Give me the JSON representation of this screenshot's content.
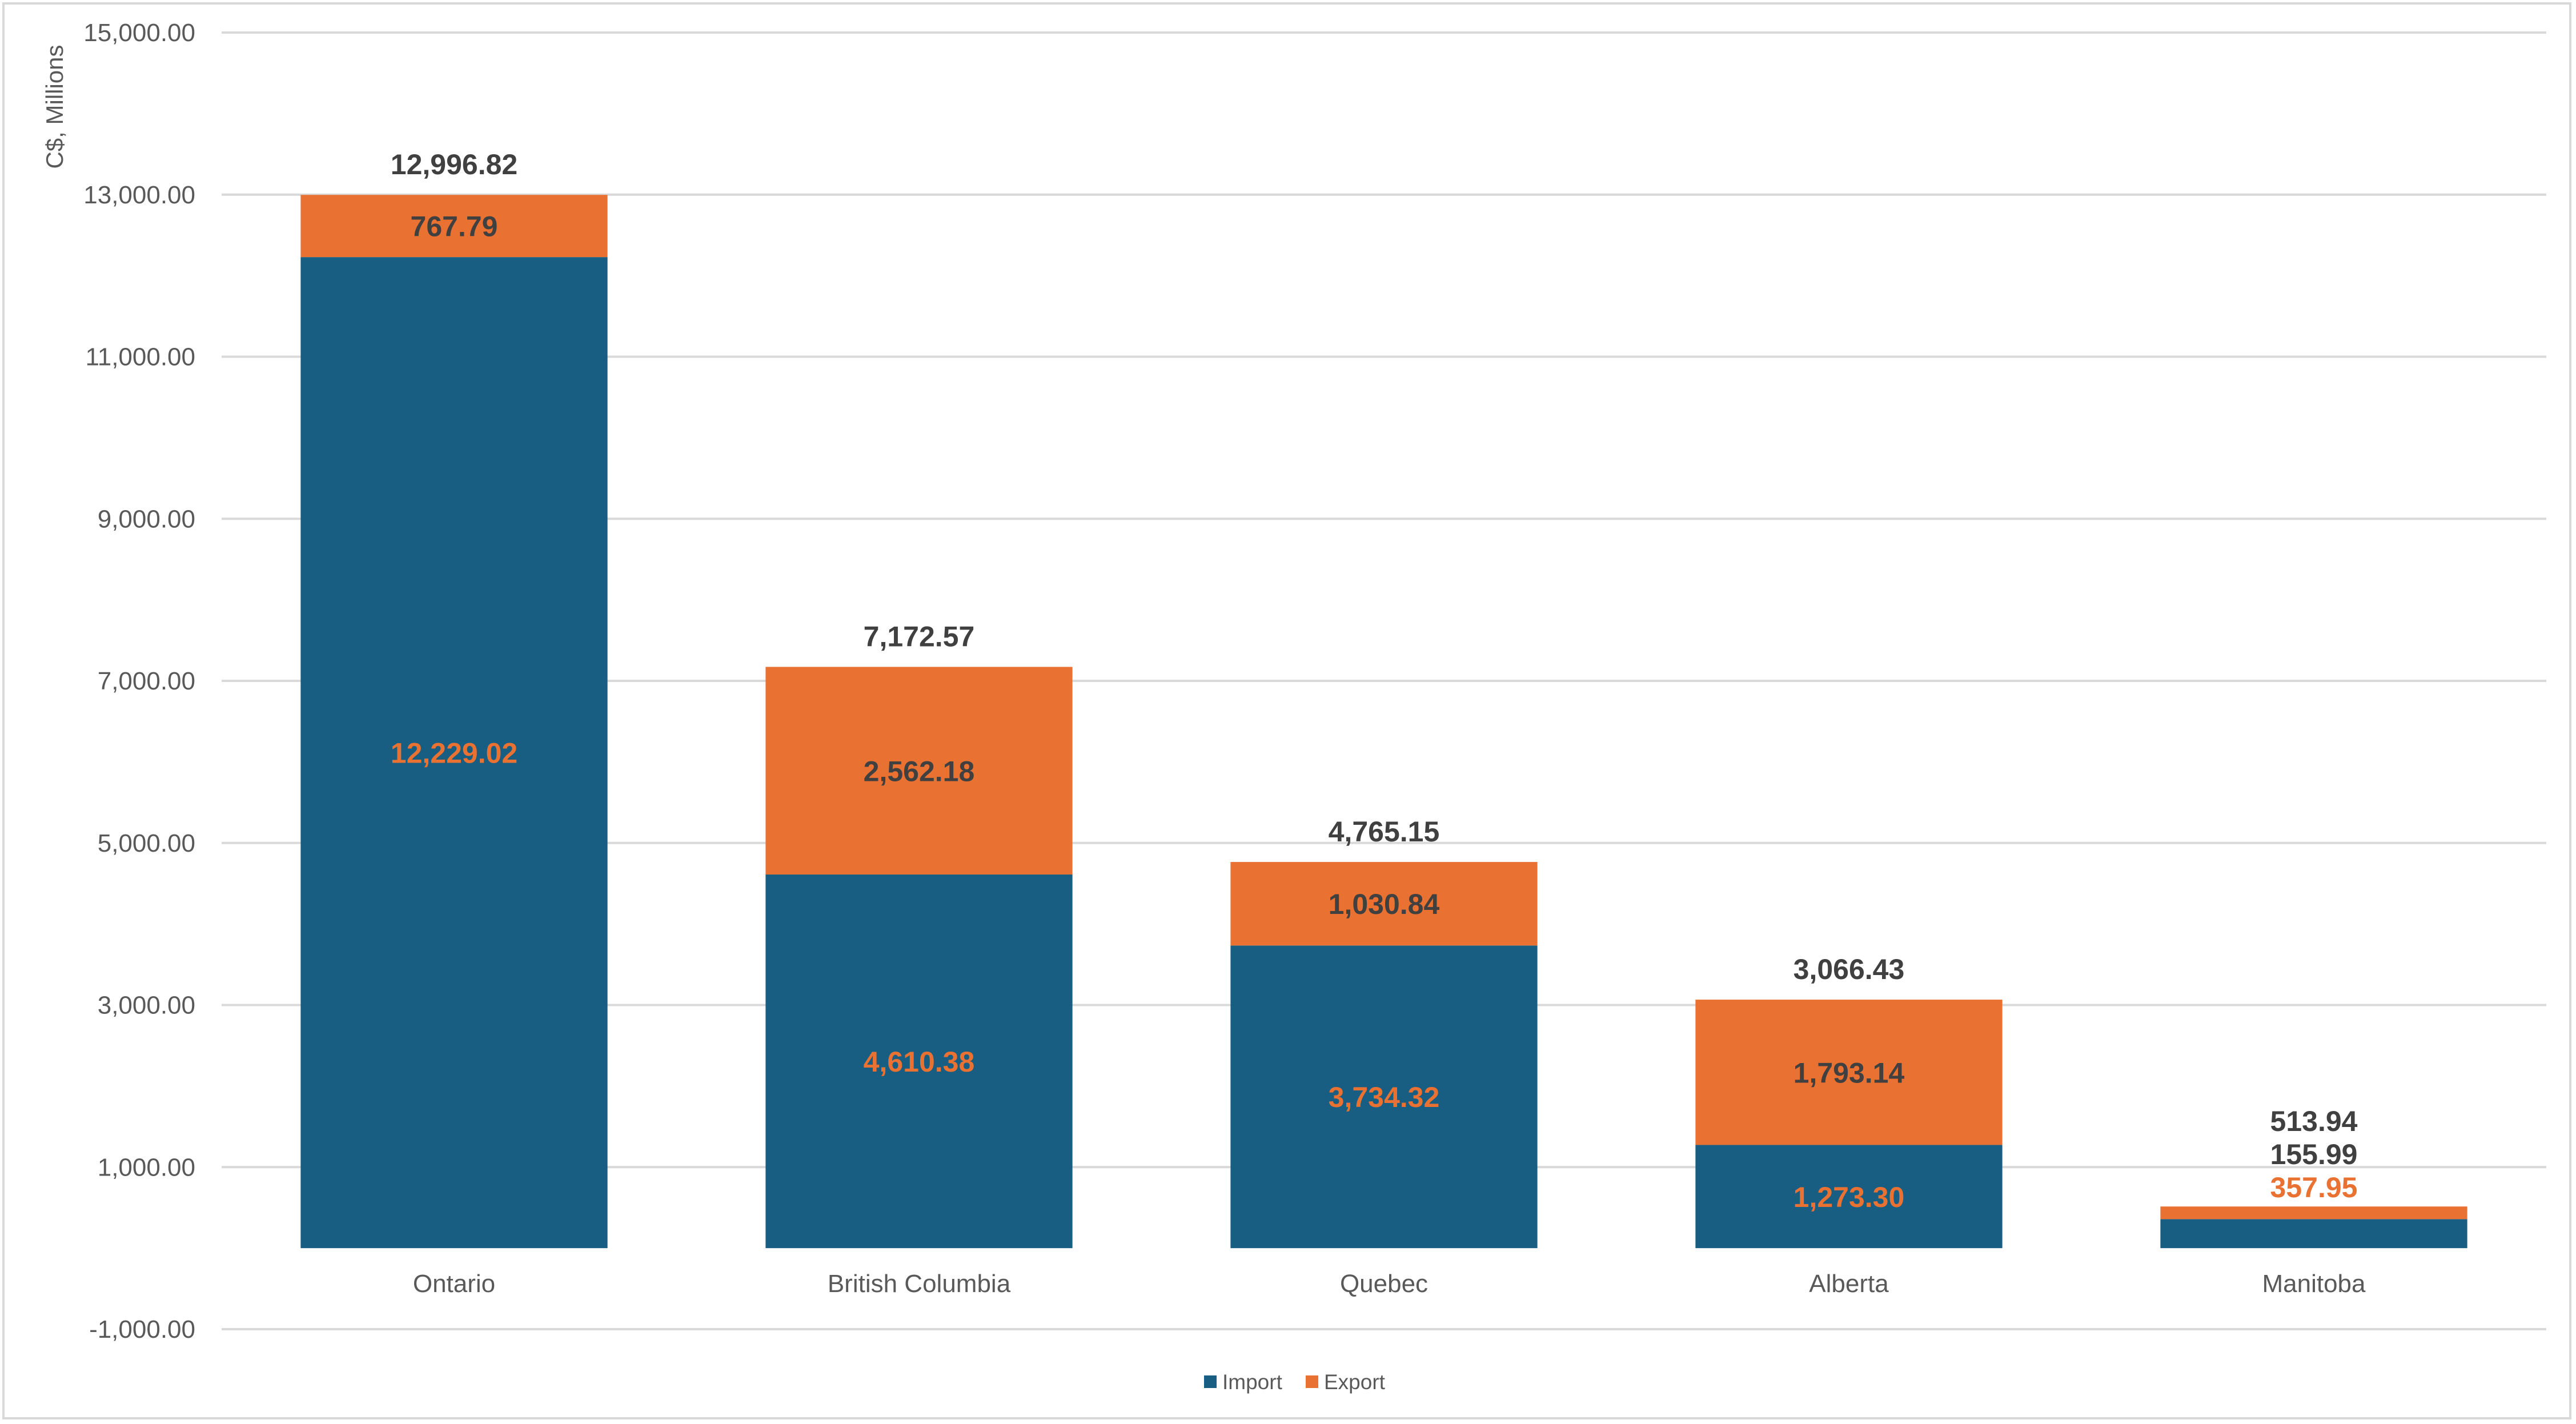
{
  "chart_data": {
    "type": "bar",
    "stacked": true,
    "title": "",
    "xlabel": "",
    "ylabel": "C$, Millions",
    "ylim": [
      -1000,
      15000
    ],
    "yticks": [
      -1000,
      1000,
      3000,
      5000,
      7000,
      9000,
      11000,
      13000,
      15000
    ],
    "ytick_labels": [
      "-1,000.00",
      "1,000.00",
      "3,000.00",
      "5,000.00",
      "7,000.00",
      "9,000.00",
      "11,000.00",
      "13,000.00",
      "15,000.00"
    ],
    "grid": true,
    "legend_position": "bottom",
    "categories": [
      "Ontario",
      "British Columbia",
      "Quebec",
      "Alberta",
      "Manitoba"
    ],
    "series": [
      {
        "name": "Import",
        "color": "#175E82",
        "label_color": "#E97132",
        "values": [
          12229.02,
          4610.38,
          3734.32,
          1273.3,
          357.95
        ],
        "labels": [
          "12,229.02",
          "4,610.38",
          "3,734.32",
          "1,273.30",
          "357.95"
        ]
      },
      {
        "name": "Export",
        "color": "#E97132",
        "label_color": "#404040",
        "values": [
          767.79,
          2562.18,
          1030.84,
          1793.14,
          155.99
        ],
        "labels": [
          "767.79",
          "2,562.18",
          "1,030.84",
          "1,793.14",
          "155.99"
        ]
      }
    ],
    "totals": [
      12996.82,
      7172.57,
      4765.15,
      3066.43,
      513.94
    ],
    "total_labels": [
      "12,996.82",
      "7,172.57",
      "4,765.15",
      "3,066.43",
      "513.94"
    ]
  }
}
